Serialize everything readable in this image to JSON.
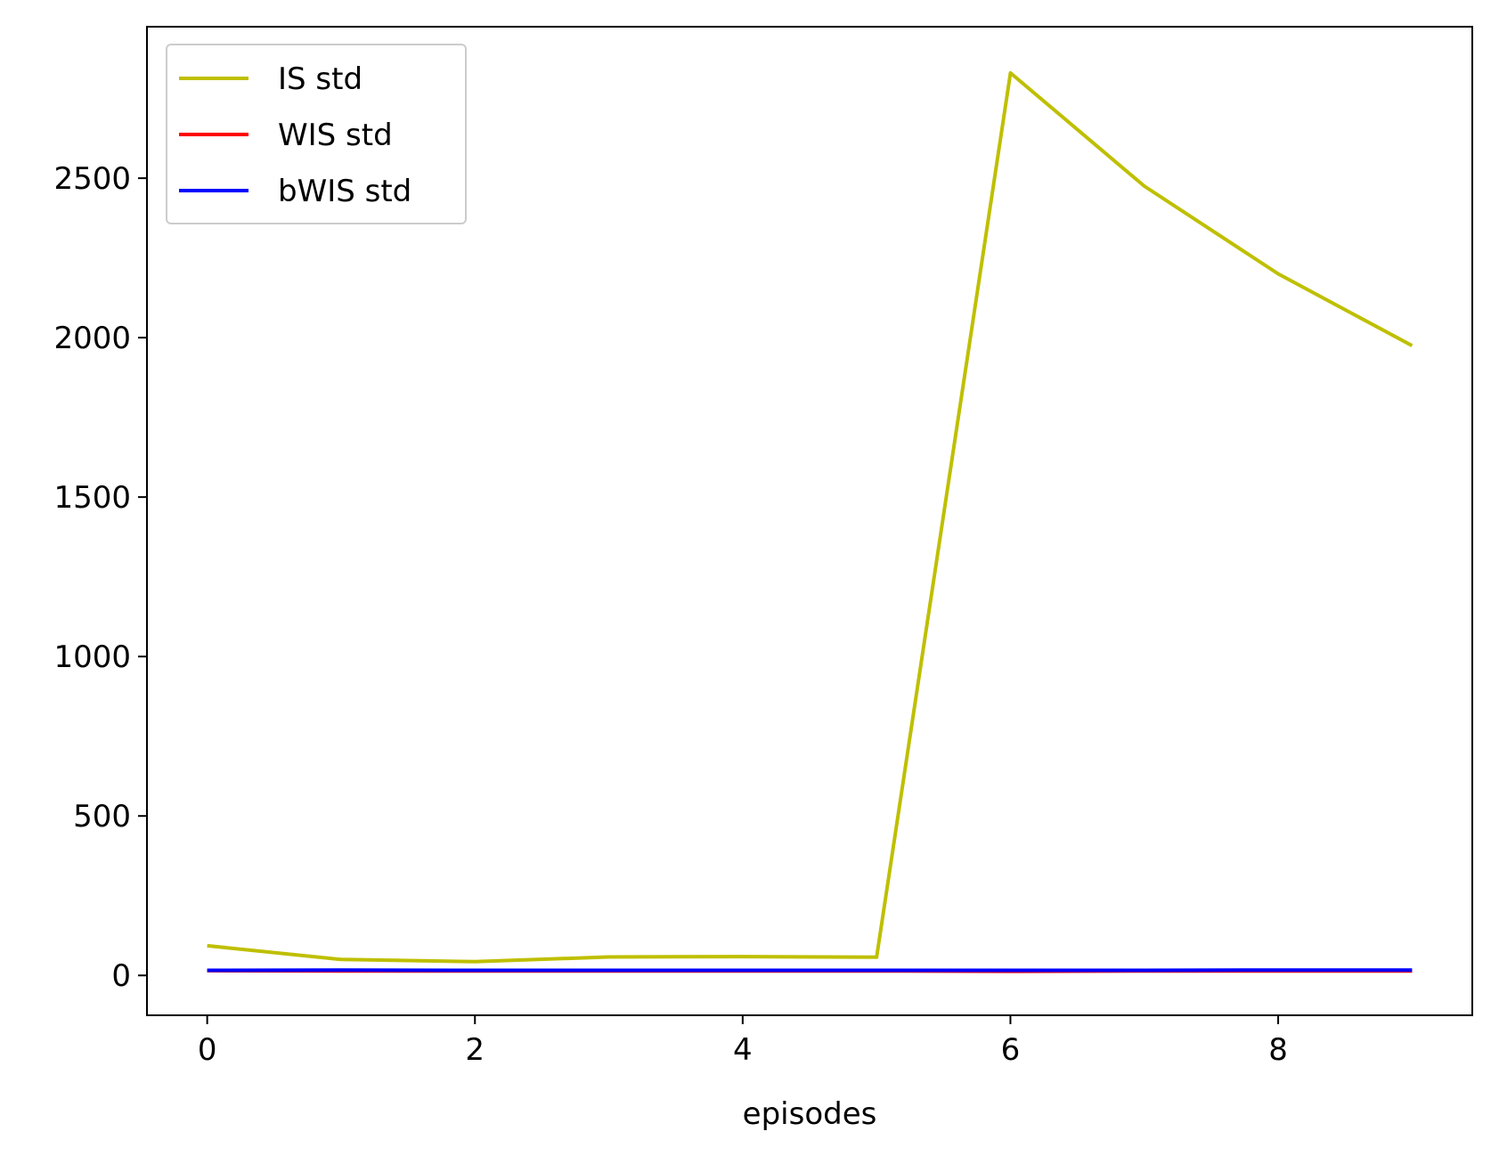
{
  "chart_data": {
    "type": "line",
    "title": "",
    "xlabel": "episodes",
    "ylabel": "",
    "x": [
      0,
      1,
      2,
      3,
      4,
      5,
      6,
      7,
      8,
      9
    ],
    "xlim": [
      -0.45,
      9.45
    ],
    "ylim": [
      -125,
      2975
    ],
    "xticks": [
      0,
      2,
      4,
      6,
      8
    ],
    "yticks": [
      0,
      500,
      1000,
      1500,
      2000,
      2500
    ],
    "grid": false,
    "legend_position": "upper-left",
    "series": [
      {
        "name": "IS std",
        "color": "#bfbf00",
        "values": [
          93,
          50,
          43,
          58,
          59,
          57,
          2830,
          2475,
          2200,
          1975
        ]
      },
      {
        "name": "WIS std",
        "color": "#ff0000",
        "values": [
          15,
          14,
          14,
          14,
          14,
          14,
          13,
          14,
          14,
          14
        ]
      },
      {
        "name": "bWIS std",
        "color": "#0000ff",
        "values": [
          16,
          17,
          16,
          16,
          16,
          16,
          16,
          16,
          17,
          17
        ]
      }
    ]
  }
}
